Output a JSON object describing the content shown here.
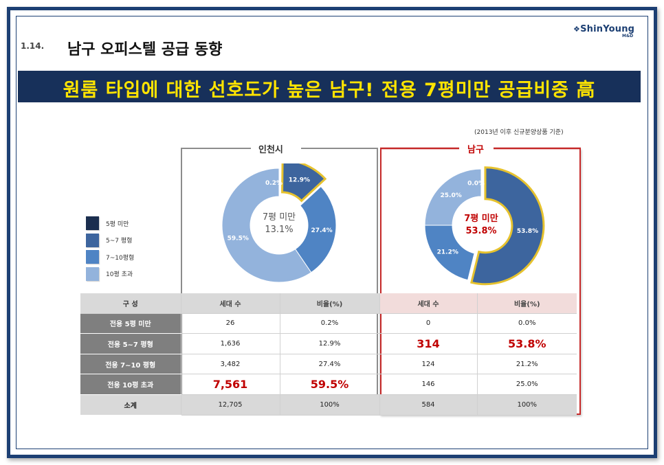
{
  "header": {
    "section_number": "1.14.",
    "title": "남구 오피스텔 공급 동향",
    "logo_text": "ShinYoung",
    "logo_sub": "M&D",
    "banner": "원룸 타입에 대한 선호도가 높은 남구! 전용 7평미만 공급비중 高"
  },
  "note": "(2013년 이후 신규분양상품 기준)",
  "colors": {
    "under5": "#1b2e4f",
    "5to7": "#3d659e",
    "7to10": "#4f84c4",
    "over10": "#93b3dc",
    "highlight": "#e6c22e",
    "accent_red": "#c00000"
  },
  "legend": [
    {
      "label": "5평 미만",
      "color": "#1b2e4f"
    },
    {
      "label": "5~7 평형",
      "color": "#3d659e"
    },
    {
      "label": "7~10평형",
      "color": "#4f84c4"
    },
    {
      "label": "10평 초과",
      "color": "#93b3dc"
    }
  ],
  "chart_data": [
    {
      "type": "pie",
      "title": "인천시",
      "center_label": "7평 미만",
      "center_value": "13.1%",
      "categories": [
        "5평 미만",
        "5~7 평형",
        "7~10평형",
        "10평 초과"
      ],
      "values": [
        0.2,
        12.9,
        27.4,
        59.5
      ],
      "slice_labels": [
        "0.2%",
        "12.9%",
        "27.4%",
        "59.5%"
      ],
      "highlighted": [
        "5~7 평형"
      ]
    },
    {
      "type": "pie",
      "title": "남구",
      "center_label": "7평 미만",
      "center_value": "53.8%",
      "categories": [
        "5평 미만",
        "5~7 평형",
        "7~10평형",
        "10평 초과"
      ],
      "values": [
        0.0,
        53.8,
        21.2,
        25.0
      ],
      "slice_labels": [
        "0.0%",
        "53.8%",
        "21.2%",
        "25.0%"
      ],
      "highlighted": [
        "5~7 평형"
      ]
    }
  ],
  "table": {
    "header": [
      "구 성",
      "세대 수",
      "비율(%)",
      "세대 수",
      "비율(%)"
    ],
    "rows": [
      {
        "label": "전용 5평 미만",
        "incheon_units": "26",
        "incheon_ratio": "0.2%",
        "namgu_units": "0",
        "namgu_ratio": "0.0%"
      },
      {
        "label": "전용 5~7 평형",
        "incheon_units": "1,636",
        "incheon_ratio": "12.9%",
        "namgu_units": "314",
        "namgu_ratio": "53.8%"
      },
      {
        "label": "전용 7~10 평형",
        "incheon_units": "3,482",
        "incheon_ratio": "27.4%",
        "namgu_units": "124",
        "namgu_ratio": "21.2%"
      },
      {
        "label": "전용 10평 초과",
        "incheon_units": "7,561",
        "incheon_ratio": "59.5%",
        "namgu_units": "146",
        "namgu_ratio": "25.0%"
      },
      {
        "label": "소계",
        "incheon_units": "12,705",
        "incheon_ratio": "100%",
        "namgu_units": "584",
        "namgu_ratio": "100%"
      }
    ]
  }
}
